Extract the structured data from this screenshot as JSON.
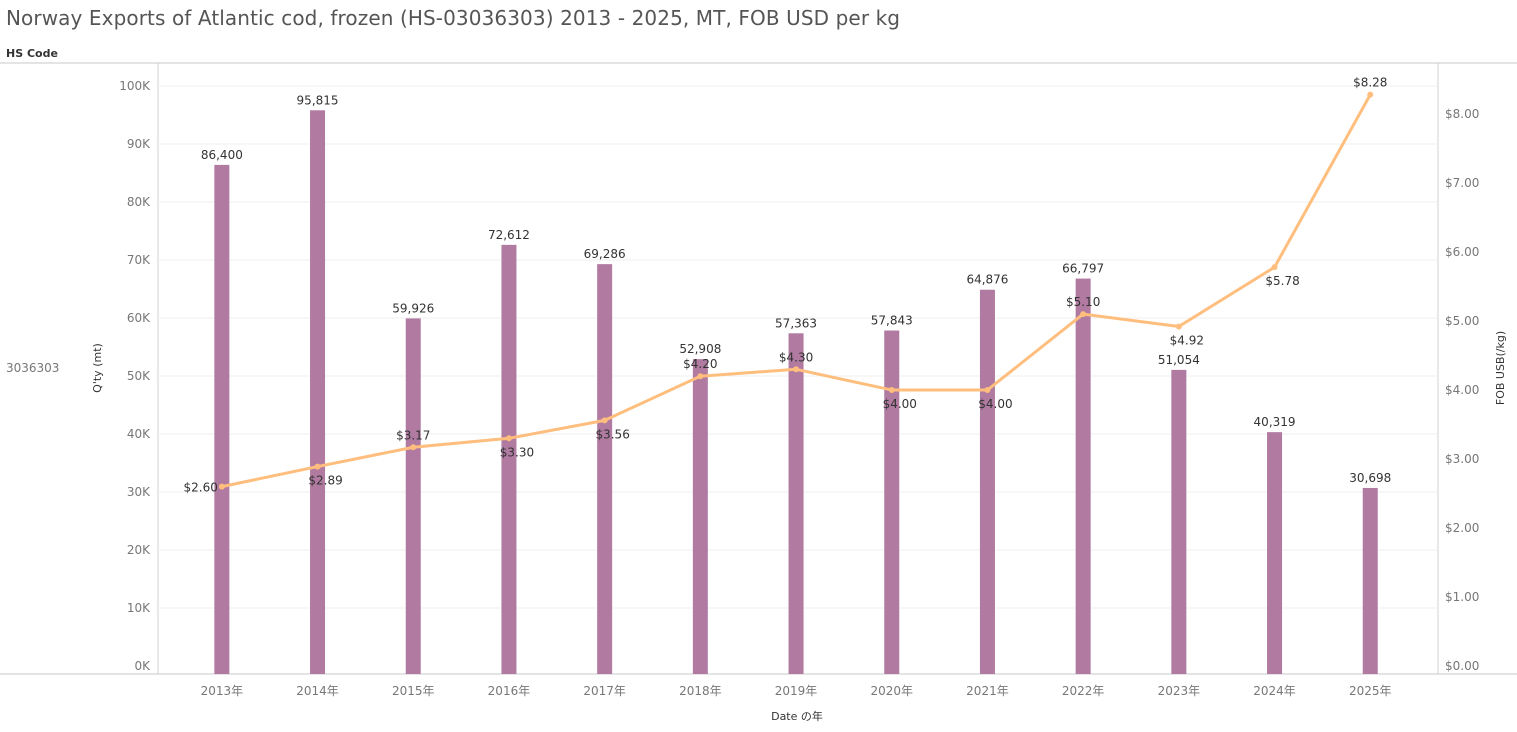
{
  "page": {
    "title": "Norway Exports of Atlantic cod, frozen (HS-03036303) 2013 - 2025, MT, FOB USD per kg",
    "row_header": "HS Code",
    "row_value": "3036303"
  },
  "chart_data": {
    "type": "bar",
    "title": "Norway Exports of Atlantic cod, frozen (HS-03036303) 2013 - 2025, MT, FOB USD per kg",
    "xlabel": "Date の年",
    "categories": [
      "2013年",
      "2014年",
      "2015年",
      "2016年",
      "2017年",
      "2018年",
      "2019年",
      "2020年",
      "2021年",
      "2022年",
      "2023年",
      "2024年",
      "2025年"
    ],
    "series": [
      {
        "name": "Q'ty (mt)",
        "type": "bar",
        "axis": "left",
        "color": "#b07aa1",
        "values": [
          86400,
          95815,
          59926,
          72612,
          69286,
          52908,
          57363,
          57843,
          64876,
          66797,
          51054,
          40319,
          30698
        ],
        "labels": [
          "86,400",
          "95,815",
          "59,926",
          "72,612",
          "69,286",
          "52,908",
          "57,363",
          "57,843",
          "64,876",
          "66,797",
          "51,054",
          "40,319",
          "30,698"
        ]
      },
      {
        "name": "FOB USB(/kg)",
        "type": "line",
        "axis": "right",
        "color": "#ffbe7d",
        "values": [
          2.6,
          2.89,
          3.17,
          3.3,
          3.56,
          4.2,
          4.3,
          4.0,
          4.0,
          5.1,
          4.92,
          5.78,
          8.28
        ],
        "labels": [
          "$2.60",
          "$2.89",
          "$3.17",
          "$3.30",
          "$3.56",
          "$4.20",
          "$4.30",
          "$4.00",
          "$4.00",
          "$5.10",
          "$4.92",
          "$5.78",
          "$8.28"
        ],
        "label_side": [
          "left",
          "below",
          "above",
          "below",
          "below",
          "above",
          "above",
          "below",
          "below",
          "above",
          "below",
          "below",
          "above"
        ]
      }
    ],
    "y_left": {
      "label": "Q'ty (mt)",
      "ylim": [
        0,
        100000
      ],
      "ticks": [
        0,
        10000,
        20000,
        30000,
        40000,
        50000,
        60000,
        70000,
        80000,
        90000,
        100000
      ],
      "tick_labels": [
        "0K",
        "10K",
        "20K",
        "30K",
        "40K",
        "50K",
        "60K",
        "70K",
        "80K",
        "90K",
        "100K"
      ]
    },
    "y_right": {
      "label": "FOB USB(/kg)",
      "ylim": [
        0,
        8.5
      ],
      "ticks": [
        0,
        1,
        2,
        3,
        4,
        5,
        6,
        7,
        8
      ],
      "tick_labels": [
        "$0.00",
        "$1.00",
        "$2.00",
        "$3.00",
        "$4.00",
        "$5.00",
        "$6.00",
        "$7.00",
        "$8.00"
      ]
    },
    "grid": true
  }
}
